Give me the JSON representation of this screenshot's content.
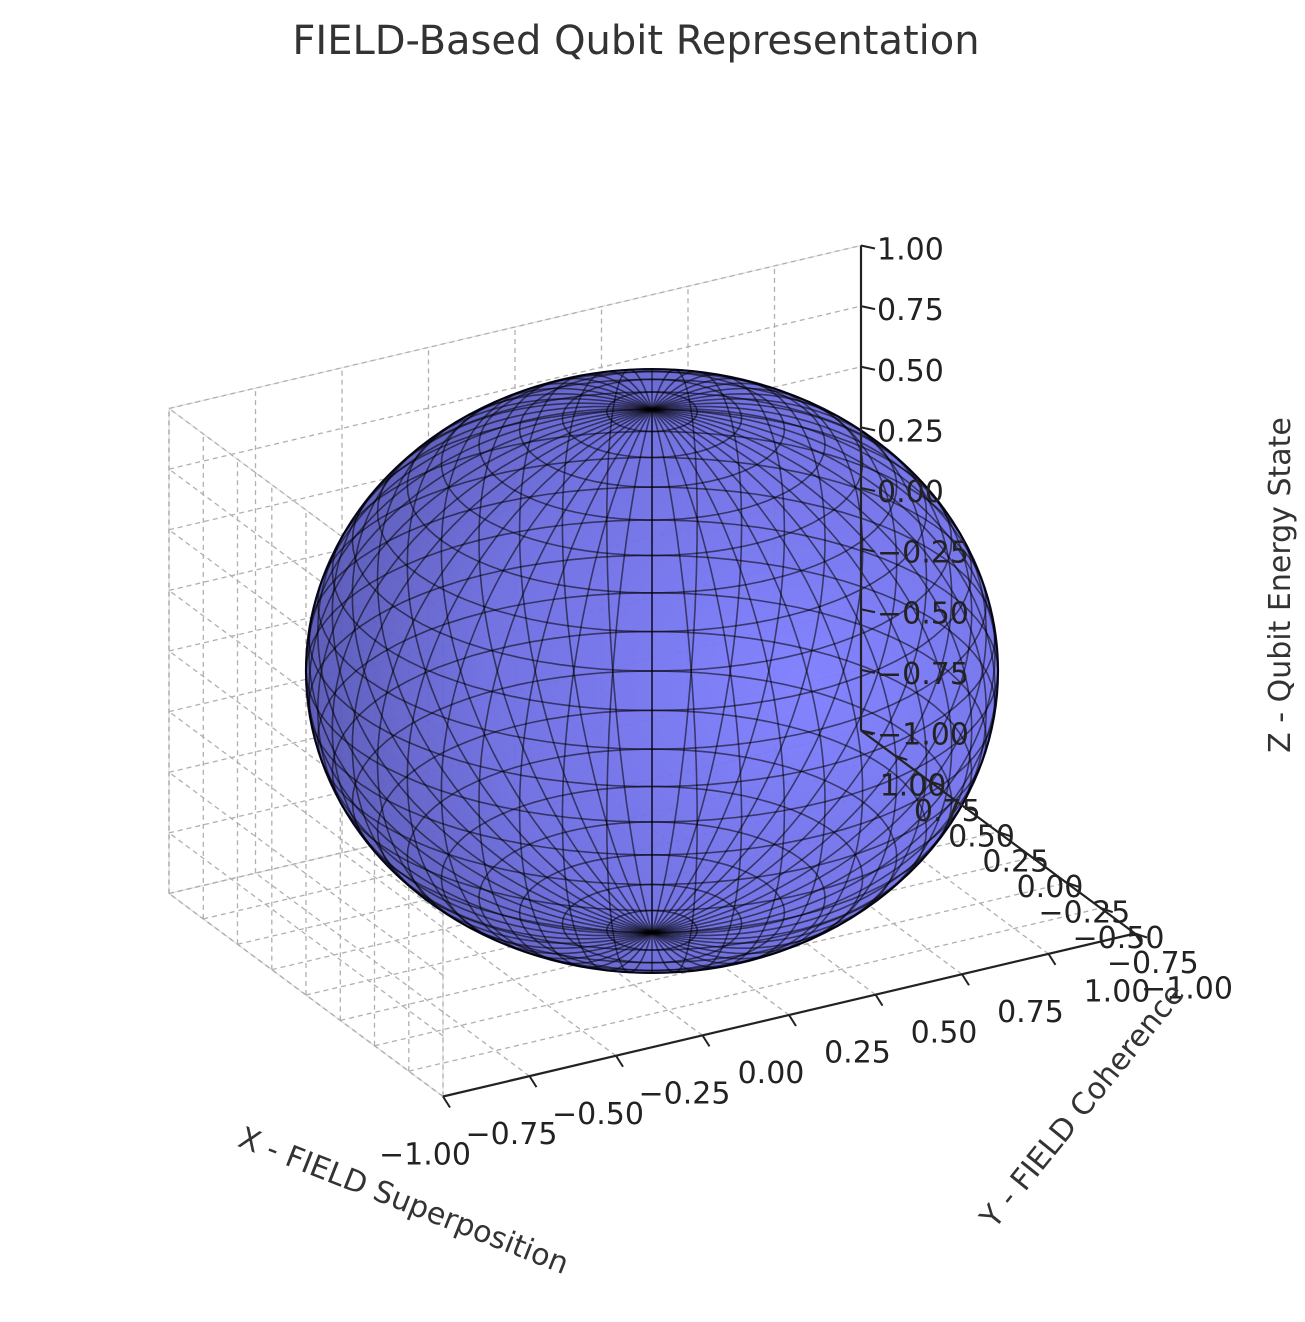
{
  "chart_data": {
    "type": "surface3d",
    "title": "FIELD-Based Qubit Representation",
    "xlabel": "X - FIELD Superposition",
    "ylabel": "Y - FIELD Coherence",
    "zlabel": "Z - Qubit Energy State",
    "xlim": [
      -1.0,
      1.0
    ],
    "ylim": [
      -1.0,
      1.0
    ],
    "zlim": [
      -1.0,
      1.0
    ],
    "x_ticks": [
      "−1.00",
      "−0.75",
      "−0.50",
      "−0.25",
      "0.00",
      "0.25",
      "0.50",
      "0.75",
      "1.00"
    ],
    "y_ticks": [
      "−1.00",
      "−0.75",
      "−0.50",
      "−0.25",
      "0.00",
      "0.25",
      "0.50",
      "0.75",
      "1.00"
    ],
    "z_ticks": [
      "−1.00",
      "−0.75",
      "−0.50",
      "−0.25",
      "0.00",
      "0.25",
      "0.50",
      "0.75",
      "1.00"
    ],
    "surface": {
      "shape": "unit sphere (Bloch sphere)",
      "radius": 1.0,
      "center": [
        0,
        0,
        0
      ],
      "face_color": "#6e6ef5",
      "edge_color": "#000000",
      "alpha": 0.6
    },
    "grid": true,
    "pane_color": "#f2f2f2"
  }
}
